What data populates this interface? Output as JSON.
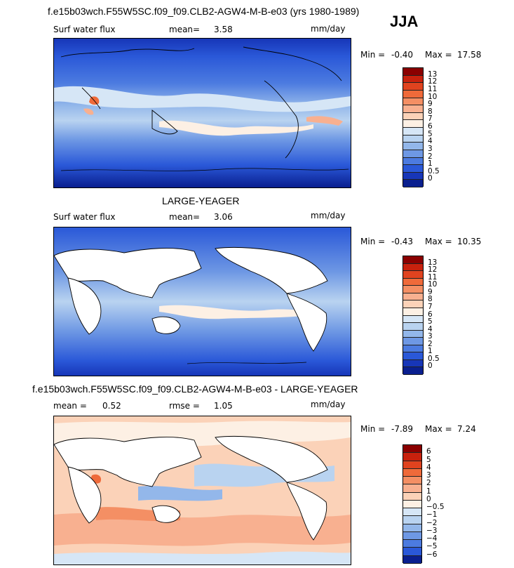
{
  "season": "JJA",
  "units": "mm/day",
  "panels": [
    {
      "id": "model",
      "header": "f.e15b03wch.F55W5SC.f09_f09.CLB2-AGW4-M-B-e03 (yrs 1980-1989)",
      "field": "Surf water flux",
      "stat1_label": "mean=",
      "stat1_value": "3.58",
      "stat2_label": "",
      "stat2_value": "",
      "units": "mm/day",
      "min_label": "Min =",
      "min_value": "-0.40",
      "max_label": "Max =",
      "max_value": "17.58",
      "levels": [
        "13",
        "12",
        "11",
        "10",
        "9",
        "8",
        "7",
        "6",
        "5",
        "4",
        "3",
        "2",
        "1",
        "0.5",
        "0"
      ],
      "colors": [
        "#8b0000",
        "#c8210d",
        "#e0431f",
        "#ef6a3a",
        "#f48f64",
        "#f8b090",
        "#fbd2b8",
        "#fdf0e4",
        "#d6e6f6",
        "#b9d3f0",
        "#93b7ea",
        "#6e98e4",
        "#4c7be0",
        "#2a58d8",
        "#1736b8",
        "#0a1f8f"
      ]
    },
    {
      "id": "obs",
      "header": "LARGE-YEAGER",
      "field": "Surf water flux",
      "stat1_label": "mean=",
      "stat1_value": "3.06",
      "stat2_label": "",
      "stat2_value": "",
      "units": "mm/day",
      "min_label": "Min =",
      "min_value": "-0.43",
      "max_label": "Max =",
      "max_value": "10.35",
      "levels": [
        "13",
        "12",
        "11",
        "10",
        "9",
        "8",
        "7",
        "6",
        "5",
        "4",
        "3",
        "2",
        "1",
        "0.5",
        "0"
      ],
      "colors": [
        "#8b0000",
        "#c8210d",
        "#e0431f",
        "#ef6a3a",
        "#f48f64",
        "#f8b090",
        "#fbd2b8",
        "#fdf0e4",
        "#d6e6f6",
        "#b9d3f0",
        "#93b7ea",
        "#6e98e4",
        "#4c7be0",
        "#2a58d8",
        "#1736b8",
        "#0a1f8f"
      ]
    },
    {
      "id": "diff",
      "header": "f.e15b03wch.F55W5SC.f09_f09.CLB2-AGW4-M-B-e03 - LARGE-YEAGER",
      "field": "",
      "stat1_label": "mean =",
      "stat1_value": "0.52",
      "stat2_label": "rmse =",
      "stat2_value": "1.05",
      "units": "mm/day",
      "min_label": "Min =",
      "min_value": "-7.89",
      "max_label": "Max =",
      "max_value": "7.24",
      "levels": [
        "6",
        "5",
        "4",
        "3",
        "2",
        "1",
        "0",
        "−0.5",
        "−1",
        "−2",
        "−3",
        "−4",
        "−5",
        "−6"
      ],
      "colors": [
        "#8b0000",
        "#c8210d",
        "#e0431f",
        "#ef6a3a",
        "#f48f64",
        "#f8b090",
        "#fbd2b8",
        "#fdf0e4",
        "#d6e6f6",
        "#b9d3f0",
        "#93b7ea",
        "#6e98e4",
        "#4c7be0",
        "#2a58d8",
        "#0a1f8f"
      ]
    }
  ],
  "chart_data": [
    {
      "type": "heatmap",
      "title": "f.e15b03wch.F55W5SC.f09_f09.CLB2-AGW4-M-B-e03 (yrs 1980-1989)",
      "subtitle": "Surf water flux",
      "units": "mm/day",
      "mean": 3.58,
      "min": -0.4,
      "max": 17.58,
      "colorbar_levels": [
        0,
        0.5,
        1,
        2,
        3,
        4,
        5,
        6,
        7,
        8,
        9,
        10,
        11,
        12,
        13
      ]
    },
    {
      "type": "heatmap",
      "title": "LARGE-YEAGER",
      "subtitle": "Surf water flux",
      "units": "mm/day",
      "mean": 3.06,
      "min": -0.43,
      "max": 10.35,
      "colorbar_levels": [
        0,
        0.5,
        1,
        2,
        3,
        4,
        5,
        6,
        7,
        8,
        9,
        10,
        11,
        12,
        13
      ]
    },
    {
      "type": "heatmap",
      "title": "f.e15b03wch.F55W5SC.f09_f09.CLB2-AGW4-M-B-e03 - LARGE-YEAGER",
      "units": "mm/day",
      "mean": 0.52,
      "rmse": 1.05,
      "min": -7.89,
      "max": 7.24,
      "colorbar_levels": [
        -6,
        -5,
        -4,
        -3,
        -2,
        -1,
        -0.5,
        0,
        1,
        2,
        3,
        4,
        5,
        6
      ]
    }
  ]
}
